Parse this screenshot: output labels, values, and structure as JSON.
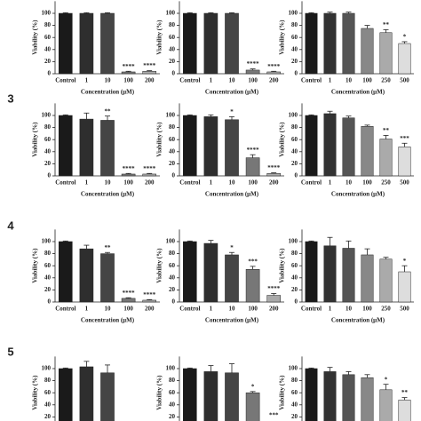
{
  "panel_labels": [
    "3",
    "4",
    "5"
  ],
  "chart_data": [
    {
      "type": "bar",
      "ylabel": "Viability (%)",
      "xlabel": "Concentration (μM)",
      "categories": [
        "Control",
        "1",
        "10",
        "100",
        "200"
      ],
      "values": [
        100,
        100,
        100,
        3,
        4
      ],
      "errors": [
        1,
        1,
        1,
        1,
        1
      ],
      "annotations": [
        null,
        null,
        null,
        "****",
        "****"
      ],
      "colors": [
        "#1a1a1a",
        "#2e2e2e",
        "#454545",
        "#777777",
        "#aaaaaa"
      ],
      "ylim": [
        0,
        120
      ],
      "yticks": [
        0,
        20,
        40,
        60,
        80,
        100
      ],
      "grid": false
    },
    {
      "type": "bar",
      "ylabel": "Viability (%)",
      "xlabel": "Concentration (μM)",
      "categories": [
        "Control",
        "1",
        "10",
        "100",
        "200"
      ],
      "values": [
        100,
        100,
        100,
        6,
        3
      ],
      "errors": [
        1,
        1,
        1,
        2,
        1
      ],
      "annotations": [
        null,
        null,
        null,
        "****",
        "****"
      ],
      "colors": [
        "#1a1a1a",
        "#2e2e2e",
        "#454545",
        "#777777",
        "#aaaaaa"
      ],
      "ylim": [
        0,
        120
      ],
      "yticks": [
        0,
        20,
        40,
        60,
        80,
        100
      ],
      "grid": false
    },
    {
      "type": "bar",
      "ylabel": "Viability (%)",
      "xlabel": "Concentration (μM)",
      "categories": [
        "Control",
        "1",
        "10",
        "100",
        "250",
        "500"
      ],
      "values": [
        100,
        100,
        100,
        75,
        68,
        50
      ],
      "errors": [
        1,
        2,
        2,
        5,
        5,
        3
      ],
      "annotations": [
        null,
        null,
        null,
        null,
        "**",
        "*"
      ],
      "colors": [
        "#1a1a1a",
        "#333333",
        "#555555",
        "#888888",
        "#aaaaaa",
        "#dddddd"
      ],
      "ylim": [
        0,
        120
      ],
      "yticks": [
        0,
        20,
        40,
        60,
        80,
        100
      ],
      "grid": false
    },
    {
      "type": "bar",
      "ylabel": "Viability (%)",
      "xlabel": "Concentration (μM)",
      "categories": [
        "Control",
        "1",
        "10",
        "100",
        "200"
      ],
      "values": [
        100,
        94,
        92,
        3,
        3
      ],
      "errors": [
        1,
        10,
        7,
        1,
        1
      ],
      "annotations": [
        null,
        null,
        "**",
        "****",
        "****"
      ],
      "colors": [
        "#1a1a1a",
        "#2e2e2e",
        "#454545",
        "#777777",
        "#aaaaaa"
      ],
      "ylim": [
        0,
        120
      ],
      "yticks": [
        0,
        20,
        40,
        60,
        80,
        100
      ],
      "grid": false
    },
    {
      "type": "bar",
      "ylabel": "Viability (%)",
      "xlabel": "Concentration (μM)",
      "categories": [
        "Control",
        "1",
        "10",
        "100",
        "200"
      ],
      "values": [
        100,
        98,
        93,
        30,
        4
      ],
      "errors": [
        1,
        3,
        5,
        5,
        1
      ],
      "annotations": [
        null,
        null,
        "*",
        "****",
        "****"
      ],
      "colors": [
        "#1a1a1a",
        "#2e2e2e",
        "#454545",
        "#777777",
        "#aaaaaa"
      ],
      "ylim": [
        0,
        120
      ],
      "yticks": [
        0,
        20,
        40,
        60,
        80,
        100
      ],
      "grid": false
    },
    {
      "type": "bar",
      "ylabel": "Viability (%)",
      "xlabel": "Concentration (μM)",
      "categories": [
        "Control",
        "1",
        "10",
        "100",
        "250",
        "500"
      ],
      "values": [
        100,
        103,
        96,
        82,
        61,
        48
      ],
      "errors": [
        1,
        4,
        3,
        2,
        6,
        6
      ],
      "annotations": [
        null,
        null,
        null,
        null,
        "**",
        "***"
      ],
      "colors": [
        "#1a1a1a",
        "#333333",
        "#555555",
        "#888888",
        "#aaaaaa",
        "#dddddd"
      ],
      "ylim": [
        0,
        120
      ],
      "yticks": [
        0,
        20,
        40,
        60,
        80,
        100
      ],
      "grid": false
    },
    {
      "type": "bar",
      "ylabel": "Viability (%)",
      "xlabel": "Concentration (μM)",
      "categories": [
        "Control",
        "1",
        "10",
        "100",
        "200"
      ],
      "values": [
        100,
        88,
        80,
        6,
        3
      ],
      "errors": [
        1,
        6,
        2,
        1,
        1
      ],
      "annotations": [
        null,
        null,
        "**",
        "****",
        "****"
      ],
      "colors": [
        "#1a1a1a",
        "#2e2e2e",
        "#454545",
        "#777777",
        "#aaaaaa"
      ],
      "ylim": [
        0,
        120
      ],
      "yticks": [
        0,
        20,
        40,
        60,
        80,
        100
      ],
      "grid": false
    },
    {
      "type": "bar",
      "ylabel": "Viability (%)",
      "xlabel": "Concentration (μM)",
      "categories": [
        "Control",
        "1",
        "10",
        "100",
        "200"
      ],
      "values": [
        100,
        97,
        78,
        54,
        11
      ],
      "errors": [
        1,
        5,
        4,
        5,
        3
      ],
      "annotations": [
        null,
        null,
        "*",
        "***",
        "****"
      ],
      "colors": [
        "#1a1a1a",
        "#2e2e2e",
        "#454545",
        "#777777",
        "#aaaaaa"
      ],
      "ylim": [
        0,
        120
      ],
      "yticks": [
        0,
        20,
        40,
        60,
        80,
        100
      ],
      "grid": false
    },
    {
      "type": "bar",
      "ylabel": "Viability (%)",
      "xlabel": "Concentration (μM)",
      "categories": [
        "Control",
        "1",
        "10",
        "100",
        "250",
        "500"
      ],
      "values": [
        100,
        93,
        89,
        78,
        71,
        50
      ],
      "errors": [
        1,
        14,
        12,
        10,
        3,
        10
      ],
      "annotations": [
        null,
        null,
        null,
        null,
        null,
        "*"
      ],
      "colors": [
        "#1a1a1a",
        "#333333",
        "#555555",
        "#888888",
        "#aaaaaa",
        "#dddddd"
      ],
      "ylim": [
        0,
        120
      ],
      "yticks": [
        0,
        20,
        40,
        60,
        80,
        100
      ],
      "grid": false
    },
    {
      "type": "bar",
      "ylabel": "Viability (%)",
      "categories": [
        null,
        null,
        null,
        null,
        null
      ],
      "values": [
        100,
        103,
        93,
        null,
        null
      ],
      "errors": [
        1,
        9,
        13,
        null,
        null
      ],
      "annotations": [
        null,
        null,
        null,
        null,
        null
      ],
      "colors": [
        "#1a1a1a",
        "#2e2e2e",
        "#454545",
        "#777777",
        "#aaaaaa"
      ],
      "ylim": [
        0,
        120
      ],
      "yticks": [
        20,
        40,
        60,
        80,
        100
      ],
      "grid": false
    },
    {
      "type": "bar",
      "ylabel": "Viability (%)",
      "categories": [
        null,
        null,
        null,
        null,
        null
      ],
      "values": [
        100,
        95,
        93,
        60,
        null
      ],
      "errors": [
        1,
        10,
        15,
        2,
        null
      ],
      "annotations": [
        null,
        null,
        null,
        "*",
        "***"
      ],
      "colors": [
        "#1a1a1a",
        "#2e2e2e",
        "#454545",
        "#777777",
        "#aaaaaa"
      ],
      "ylim": [
        0,
        120
      ],
      "yticks": [
        20,
        40,
        60,
        80,
        100
      ],
      "grid": false
    },
    {
      "type": "bar",
      "ylabel": "Viability (%)",
      "categories": [
        null,
        null,
        null,
        null,
        null,
        null
      ],
      "values": [
        100,
        95,
        90,
        85,
        65,
        48
      ],
      "errors": [
        1,
        7,
        5,
        5,
        9,
        4
      ],
      "annotations": [
        null,
        null,
        null,
        null,
        "*",
        "**"
      ],
      "colors": [
        "#1a1a1a",
        "#333333",
        "#555555",
        "#888888",
        "#aaaaaa",
        "#dddddd"
      ],
      "ylim": [
        0,
        120
      ],
      "yticks": [
        20,
        40,
        60,
        80,
        100
      ],
      "grid": false
    }
  ]
}
